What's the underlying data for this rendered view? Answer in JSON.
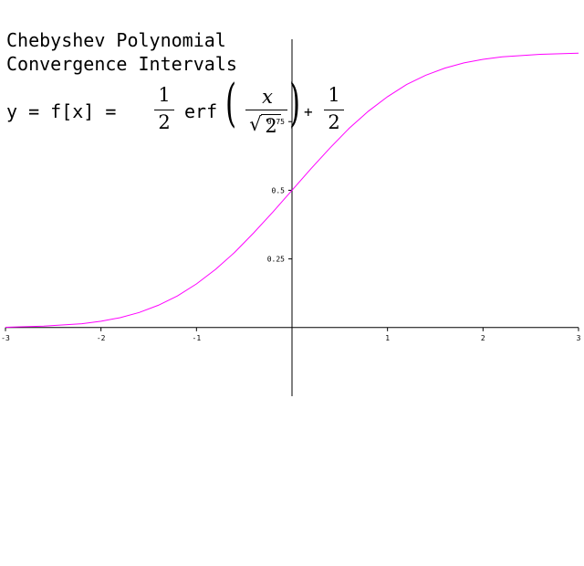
{
  "title_lines": [
    "Chebyshev Polynomial",
    "Convergence Intervals"
  ],
  "formula": {
    "lhs": "y = f[x] =",
    "frac_num": "1",
    "frac_den": "2",
    "func": "erf",
    "inner_num": "x",
    "sqrt_symbol": "√",
    "sqrt_arg": "2",
    "plus": "+"
  },
  "chart_data": {
    "type": "line",
    "title": "Chebyshev Polynomial Convergence Intervals",
    "xlim": [
      -3,
      3
    ],
    "ylim": [
      -0.25,
      1.05
    ],
    "grid": false,
    "line_color": "#ff00ff",
    "x_ticks": [
      {
        "value": -3,
        "label": "-3"
      },
      {
        "value": -2,
        "label": "-2"
      },
      {
        "value": -1,
        "label": "-1"
      },
      {
        "value": 1,
        "label": "1"
      },
      {
        "value": 2,
        "label": "2"
      },
      {
        "value": 3,
        "label": "3"
      }
    ],
    "y_ticks": [
      {
        "value": 0.25,
        "label": "0.25"
      },
      {
        "value": 0.5,
        "label": "0.5"
      },
      {
        "value": 0.75,
        "label": "0.75"
      }
    ],
    "series": [
      {
        "x": [
          -3,
          -2.6,
          -2.2,
          -2,
          -1.8,
          -1.6,
          -1.4,
          -1.2,
          -1,
          -0.8,
          -0.6,
          -0.4,
          -0.2,
          0,
          0.2,
          0.4,
          0.6,
          0.8,
          1,
          1.2,
          1.4,
          1.6,
          1.8,
          2,
          2.2,
          2.6,
          3
        ],
        "y": [
          0.001,
          0.005,
          0.014,
          0.023,
          0.036,
          0.055,
          0.081,
          0.115,
          0.159,
          0.212,
          0.274,
          0.345,
          0.421,
          0.5,
          0.579,
          0.655,
          0.726,
          0.788,
          0.841,
          0.885,
          0.919,
          0.945,
          0.964,
          0.977,
          0.986,
          0.995,
          0.999
        ]
      }
    ]
  }
}
